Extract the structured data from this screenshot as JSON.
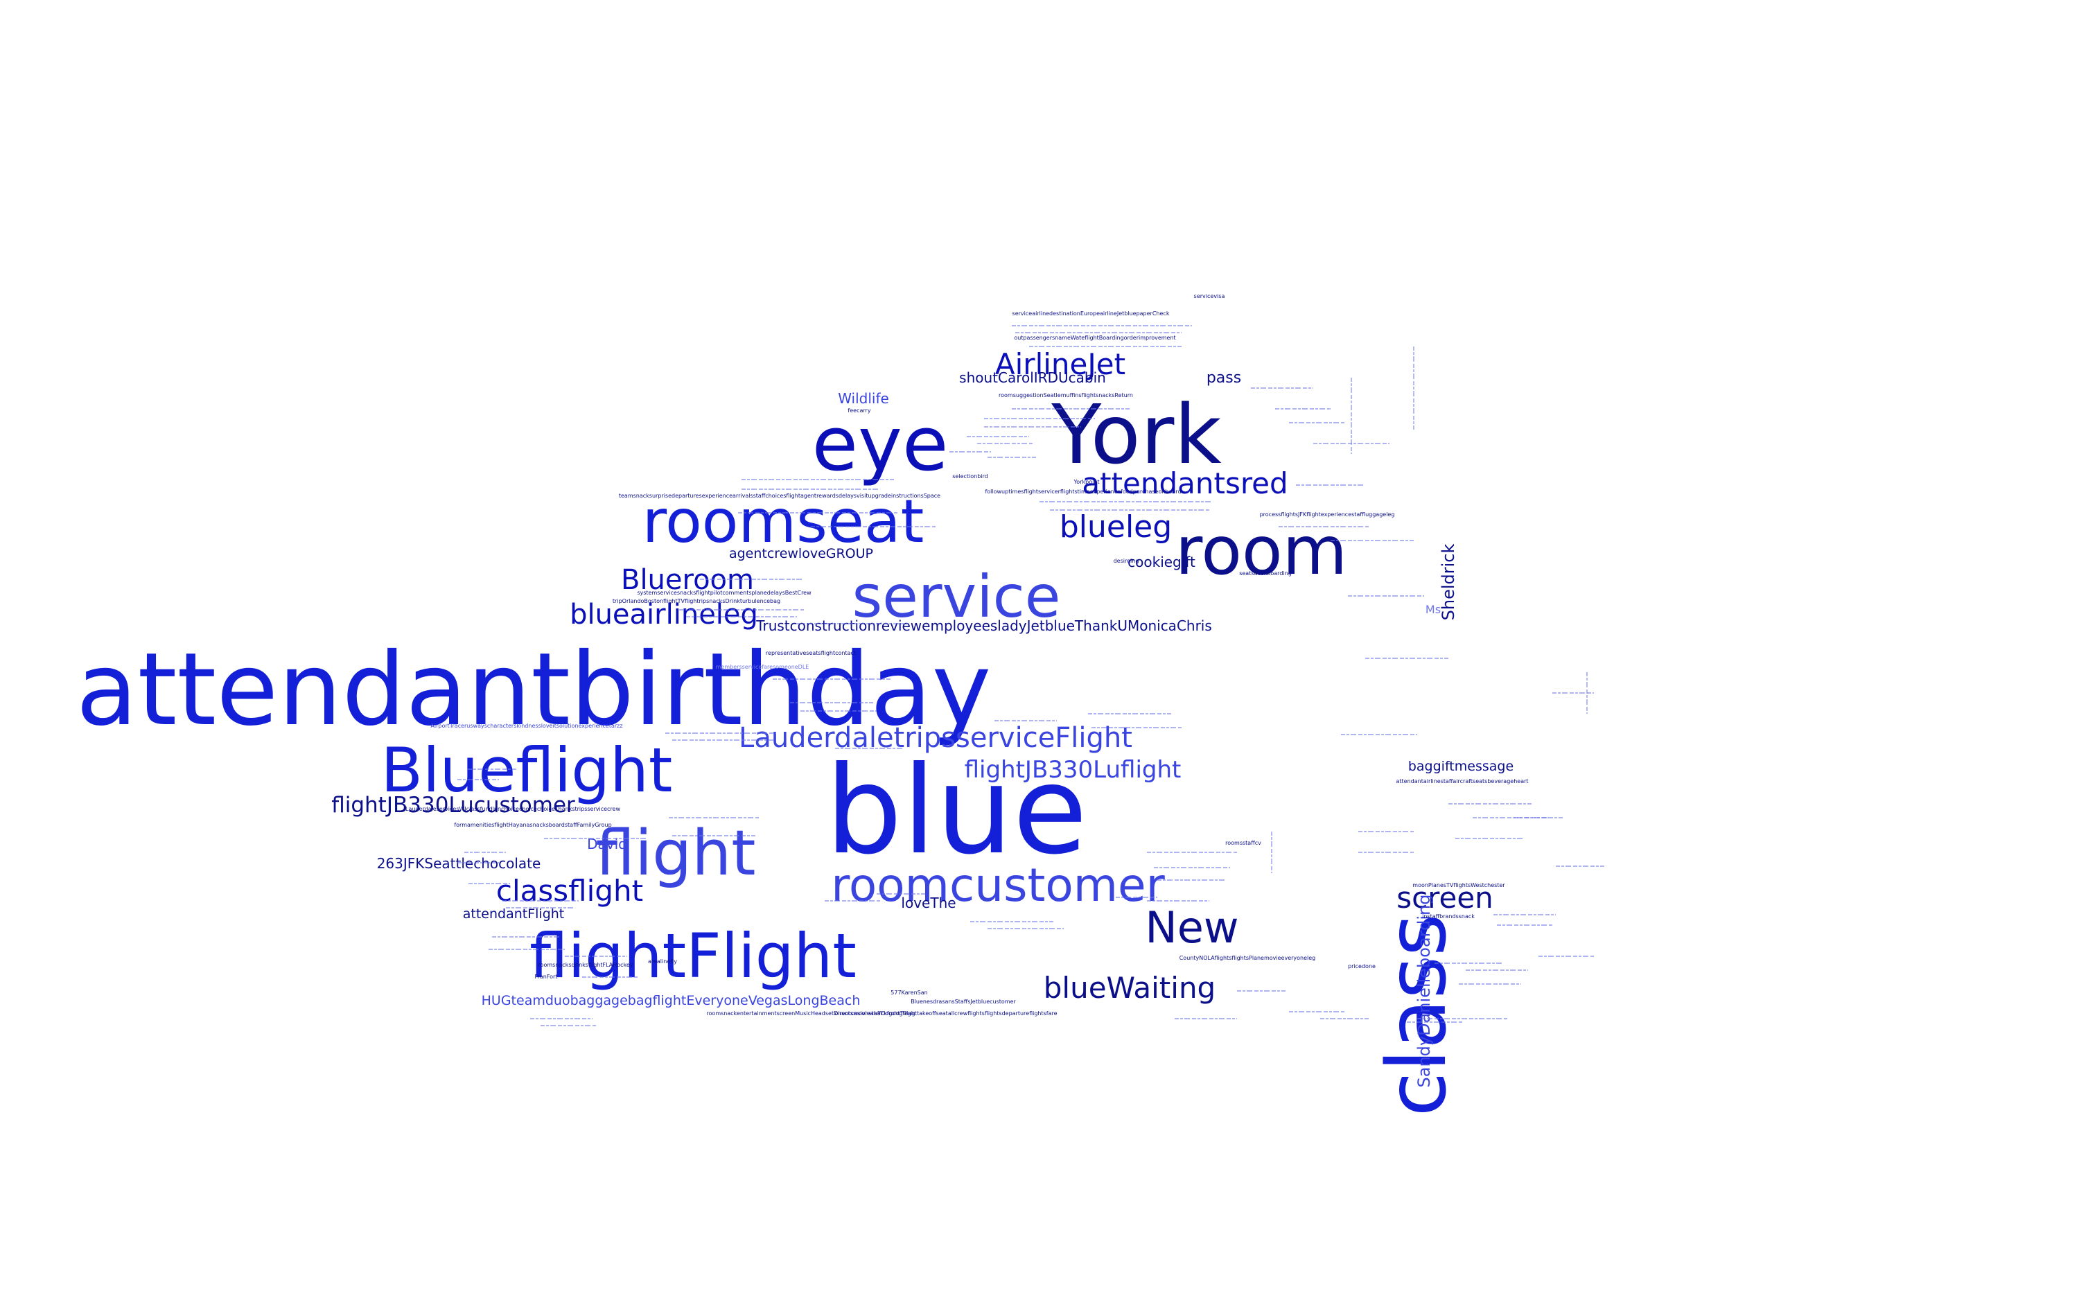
{
  "colors": {
    "background": "#ffffff",
    "deep_blue": "#0a0fb8",
    "royal_blue": "#1420d8",
    "navy": "#0b0f8a",
    "medium_blue": "#3a45e0",
    "light_blue": "#6f78e8"
  },
  "words": [
    {
      "text": "attendantbirthday",
      "color": "royal_blue"
    },
    {
      "text": "blue",
      "color": "royal_blue"
    },
    {
      "text": "York",
      "color": "navy"
    },
    {
      "text": "eye",
      "color": "deep_blue"
    },
    {
      "text": "class",
      "color": "royal_blue"
    },
    {
      "text": "room",
      "color": "navy"
    },
    {
      "text": "roomseat",
      "color": "royal_blue"
    },
    {
      "text": "service",
      "color": "medium_blue"
    },
    {
      "text": "Blueflight",
      "color": "royal_blue"
    },
    {
      "text": "flight",
      "color": "medium_blue"
    },
    {
      "text": "flightFlight",
      "color": "royal_blue"
    },
    {
      "text": "roomcustomer",
      "color": "medium_blue"
    },
    {
      "text": "New",
      "color": "navy"
    },
    {
      "text": "AirlineJet",
      "color": "deep_blue"
    },
    {
      "text": "attendantsred",
      "color": "deep_blue"
    },
    {
      "text": "blueleg",
      "color": "deep_blue"
    },
    {
      "text": "Blueroom",
      "color": "deep_blue"
    },
    {
      "text": "blueairlineleg",
      "color": "deep_blue"
    },
    {
      "text": "LauderdaletripsserviceFlight",
      "color": "medium_blue"
    },
    {
      "text": "flightJB330Luflight",
      "color": "medium_blue"
    },
    {
      "text": "flightJB330Lucustomer",
      "color": "navy"
    },
    {
      "text": "classflight",
      "color": "deep_blue"
    },
    {
      "text": "screen",
      "color": "navy"
    },
    {
      "text": "blueWaiting",
      "color": "navy"
    },
    {
      "text": "SandyDanielleboarding",
      "color": "medium_blue"
    },
    {
      "text": "Sheldrick",
      "color": "navy"
    },
    {
      "text": "Wildlife",
      "color": "medium_blue"
    },
    {
      "text": "pass",
      "color": "navy"
    },
    {
      "text": "shoutCarolIRDUcabin",
      "color": "navy"
    },
    {
      "text": "agentcrewloveGROUP",
      "color": "navy"
    },
    {
      "text": "cookiegift",
      "color": "navy"
    },
    {
      "text": "TrustconstructionreviewemployeesladyJetblueThankUMonicaChris",
      "color": "navy"
    },
    {
      "text": "263JFKSeattlechocolate",
      "color": "navy"
    },
    {
      "text": "David",
      "color": "medium_blue"
    },
    {
      "text": "attendantFlight",
      "color": "navy"
    },
    {
      "text": "loveThe",
      "color": "navy"
    },
    {
      "text": "baggiftmessage",
      "color": "navy"
    },
    {
      "text": "Ms",
      "color": "light_blue"
    },
    {
      "text": "HUGteamduobaggagebagflightEveryoneVegasLongBeach",
      "color": "medium_blue"
    },
    {
      "text": "serviceairlinedestinationEuropeairlineJetbluepaperCheck",
      "color": "navy"
    },
    {
      "text": "outpassengersnameWateflightBoardingorderimprovement",
      "color": "navy"
    },
    {
      "text": "roomsuggestionSeatlemuffinsflightsnacksReturn",
      "color": "navy"
    },
    {
      "text": "followuptimesflightservicerflightstimeexperiencefoodpurchaseonboard",
      "color": "navy"
    },
    {
      "text": "selectionbird",
      "color": "navy"
    },
    {
      "text": "Yorkpoint",
      "color": "navy"
    },
    {
      "text": "seatsdeskboarding",
      "color": "navy"
    },
    {
      "text": "representativeseatsflightcontact",
      "color": "navy"
    },
    {
      "text": "membersservicefaresomeoneDLE",
      "color": "light_blue"
    },
    {
      "text": "systemservicesnacksflightpilotcommentsplanedelaysBestCrew",
      "color": "navy"
    },
    {
      "text": "AirportTraceruswayscharacterskindnessloveitsolutionexperiencetarzz",
      "color": "medium_blue"
    },
    {
      "text": "LauderdaleservicesWJclassfundlunchoicechoicechoiceThankstripsservicecrew",
      "color": "navy"
    },
    {
      "text": "formamenitiesflightHayanasnacksboardstaffFamilyGroup",
      "color": "navy"
    },
    {
      "text": "roomsnacksdrinksflightFLAHockey",
      "color": "navy"
    },
    {
      "text": "roomsnackentertainmentscreenMusicHeadsetDirectsmovieabackfrontTvlag",
      "color": "navy"
    },
    {
      "text": "onsoccasionstaffDogdogflighttakeoffseatallcrewflightsflightsdepartureflightsfare",
      "color": "navy"
    },
    {
      "text": "BluenesdrasansStaffsJetbluecustomer",
      "color": "navy"
    },
    {
      "text": "CountyNOLAflightsflightsPlanemovieeveryoneleg",
      "color": "navy"
    },
    {
      "text": "processflightsJFKflightexperiencestaffluggageleg",
      "color": "navy"
    },
    {
      "text": "moonPlanesTVflightsWestchester",
      "color": "navy"
    },
    {
      "text": "attendantairlinestaffaircraftseatsbeverageheart",
      "color": "navy"
    },
    {
      "text": "instaffbrandssnack",
      "color": "navy"
    },
    {
      "text": "pricedone",
      "color": "navy"
    },
    {
      "text": "FranFort",
      "color": "navy"
    },
    {
      "text": "arealinefly",
      "color": "navy"
    },
    {
      "text": "577KarenSan",
      "color": "navy"
    },
    {
      "text": "tripOrlandoBostonflightTVflightripsnacksDrinkturbulencebag",
      "color": "navy"
    },
    {
      "text": "teamsnacksurprisedeparturesexperiencearrivalsstaffchoicesflightagentrewardsdelaysvisitupgradeinstructionsSpace",
      "color": "navy"
    },
    {
      "text": "feecarry",
      "color": "navy"
    },
    {
      "text": "servicevisa",
      "color": "navy"
    },
    {
      "text": "desireing",
      "color": "navy"
    },
    {
      "text": "roomsstaffcv",
      "color": "navy"
    }
  ]
}
